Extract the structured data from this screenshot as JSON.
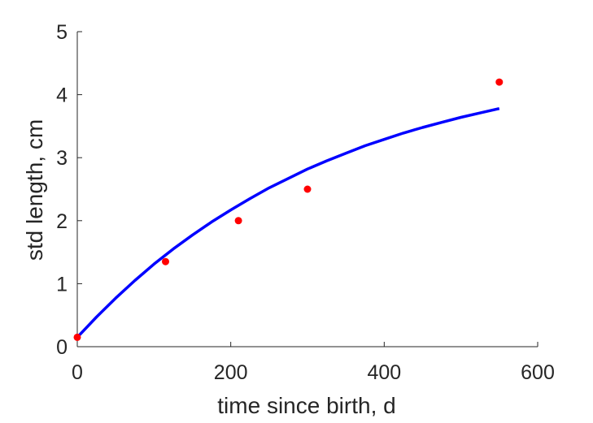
{
  "chart_data": {
    "type": "scatter",
    "title": "",
    "xlabel": "time since birth, d",
    "ylabel": "std length, cm",
    "xlim": [
      0,
      600
    ],
    "ylim": [
      0,
      5
    ],
    "xticks": [
      "0",
      "200",
      "400",
      "600"
    ],
    "yticks": [
      "0",
      "1",
      "2",
      "3",
      "4",
      "5"
    ],
    "grid": false,
    "legend": "none",
    "series": [
      {
        "kind": "points",
        "color": "#ff0000",
        "x": [
          0,
          115,
          210,
          300,
          550
        ],
        "y": [
          0.15,
          1.35,
          2.0,
          2.5,
          4.2
        ]
      },
      {
        "kind": "line",
        "color": "#0000ff",
        "x": [
          0,
          25,
          50,
          75,
          100,
          125,
          150,
          175,
          200,
          225,
          250,
          275,
          300,
          325,
          350,
          375,
          400,
          425,
          450,
          475,
          500,
          525,
          550
        ],
        "y": [
          0.15,
          0.47,
          0.77,
          1.05,
          1.31,
          1.55,
          1.77,
          1.98,
          2.17,
          2.35,
          2.52,
          2.67,
          2.82,
          2.95,
          3.07,
          3.19,
          3.29,
          3.39,
          3.48,
          3.56,
          3.64,
          3.71,
          3.78
        ]
      }
    ]
  }
}
